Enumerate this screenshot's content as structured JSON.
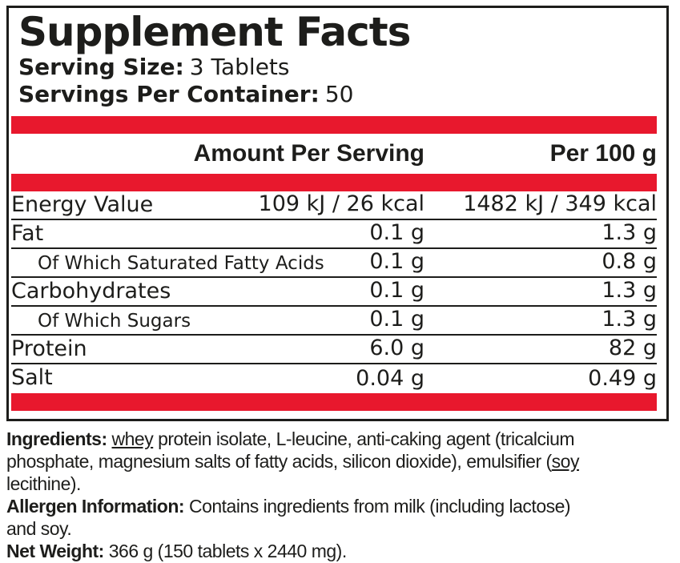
{
  "panel": {
    "title": "Supplement Facts",
    "serving_size_label": "Serving Size:",
    "serving_size_value": "3 Tablets",
    "servings_per_container_label": "Servings Per Container:",
    "servings_per_container_value": "50",
    "accent_color": "#e8182d",
    "text_color": "#1d1d1b"
  },
  "table": {
    "columns": [
      "Amount Per Serving",
      "Per 100 g"
    ],
    "rows": [
      {
        "name": "Energy Value",
        "amount": "109 kJ / 26 kcal",
        "per100": "1482 kJ / 349 kcal",
        "sub": false
      },
      {
        "name": "Fat",
        "amount": "0.1 g",
        "per100": "1.3 g",
        "sub": false
      },
      {
        "name": "Of Which Saturated Fatty Acids",
        "amount": "0.1 g",
        "per100": "0.8 g",
        "sub": true
      },
      {
        "name": "Carbohydrates",
        "amount": "0.1 g",
        "per100": "1.3 g",
        "sub": false
      },
      {
        "name": "Of Which Sugars",
        "amount": "0.1 g",
        "per100": "1.3 g",
        "sub": true
      },
      {
        "name": "Protein",
        "amount": "6.0 g",
        "per100": "82 g",
        "sub": false
      },
      {
        "name": "Salt",
        "amount": "0.04 g",
        "per100": "0.49 g",
        "sub": false
      }
    ]
  },
  "footnotes": {
    "paragraphs": [
      {
        "lines": [
          [
            {
              "t": "Ingredients: ",
              "b": true
            },
            {
              "t": "whey",
              "u": true
            },
            {
              "t": " protein isolate, L-leucine, anti-caking agent (tricalcium"
            }
          ],
          [
            {
              "t": "phosphate, magnesium salts of fatty acids, silicon dioxide), emulsifier ("
            },
            {
              "t": "soy",
              "u": true
            }
          ],
          [
            {
              "t": "lecithine)."
            }
          ]
        ]
      },
      {
        "lines": [
          [
            {
              "t": "Allergen Information: ",
              "b": true
            },
            {
              "t": "Contains ingredients from milk (including lactose)"
            }
          ],
          [
            {
              "t": "and soy."
            }
          ]
        ]
      },
      {
        "lines": [
          [
            {
              "t": "Net Weight: ",
              "b": true
            },
            {
              "t": "366 g (150 tablets x 2440 mg)."
            }
          ]
        ]
      }
    ]
  }
}
